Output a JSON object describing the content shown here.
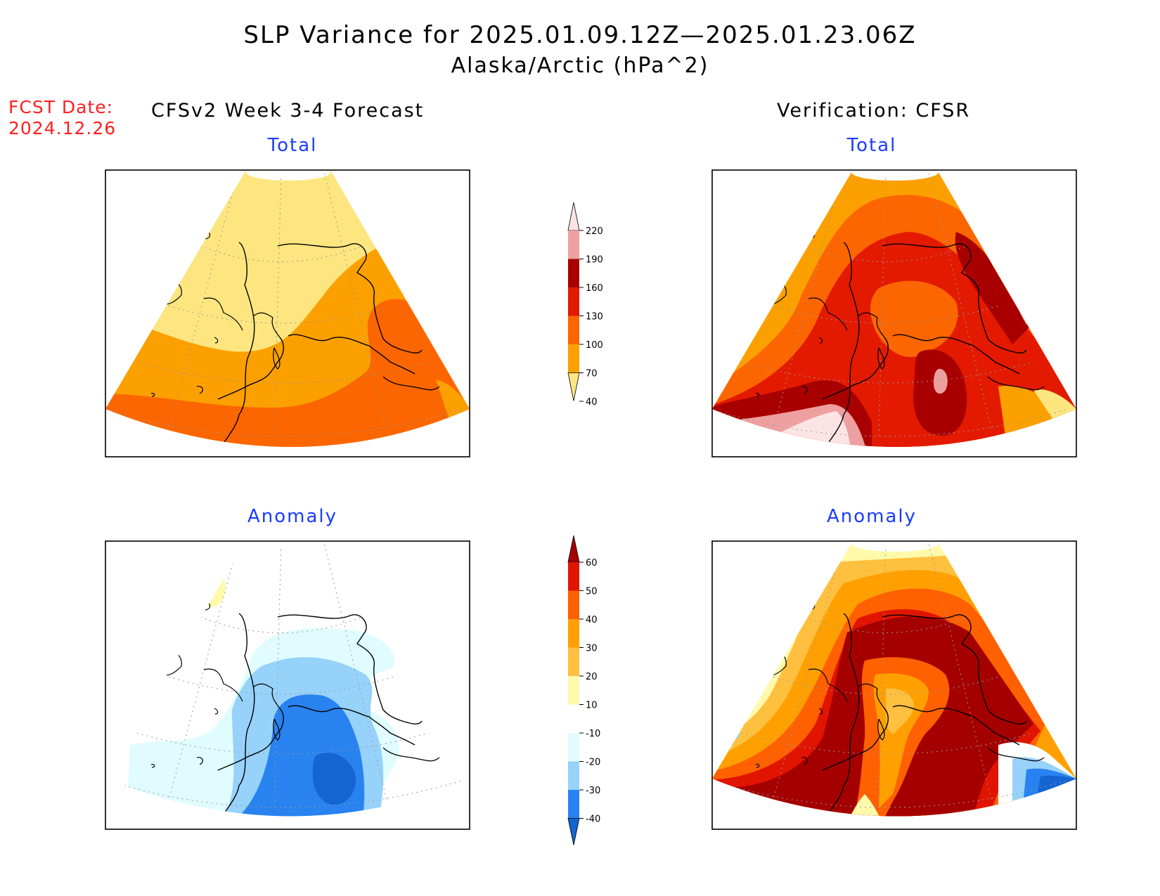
{
  "title": {
    "line1": "SLP Variance for 2025.01.09.12Z—2025.01.23.06Z",
    "line2": "Alaska/Arctic (hPa^2)"
  },
  "forecast_date": {
    "label": "FCST Date:",
    "value": "2024.12.26"
  },
  "columns": {
    "left": "CFSv2 Week 3-4 Forecast",
    "right": "Verification: CFSR"
  },
  "panels": {
    "top_left": "Total",
    "top_right": "Total",
    "bottom_left": "Anomaly",
    "bottom_right": "Anomaly"
  },
  "colorbars": {
    "total": {
      "levels": [
        "40",
        "70",
        "100",
        "130",
        "160",
        "190",
        "220"
      ],
      "colors": [
        "#fde680",
        "#fca000",
        "#fc6600",
        "#e31a00",
        "#a80000",
        "#eea0a0",
        "#fde4e4"
      ]
    },
    "anomaly": {
      "levels": [
        "-40",
        "-30",
        "-20",
        "-10",
        "10",
        "20",
        "30",
        "40",
        "50",
        "60"
      ],
      "colors": [
        "#1464d2",
        "#2882f0",
        "#96d2fa",
        "#e0fcff",
        "#ffffff",
        "#fffaaa",
        "#ffc040",
        "#ffa000",
        "#ff6000",
        "#e11400",
        "#a50000"
      ]
    }
  },
  "map_domain": "Alaska/Arctic"
}
